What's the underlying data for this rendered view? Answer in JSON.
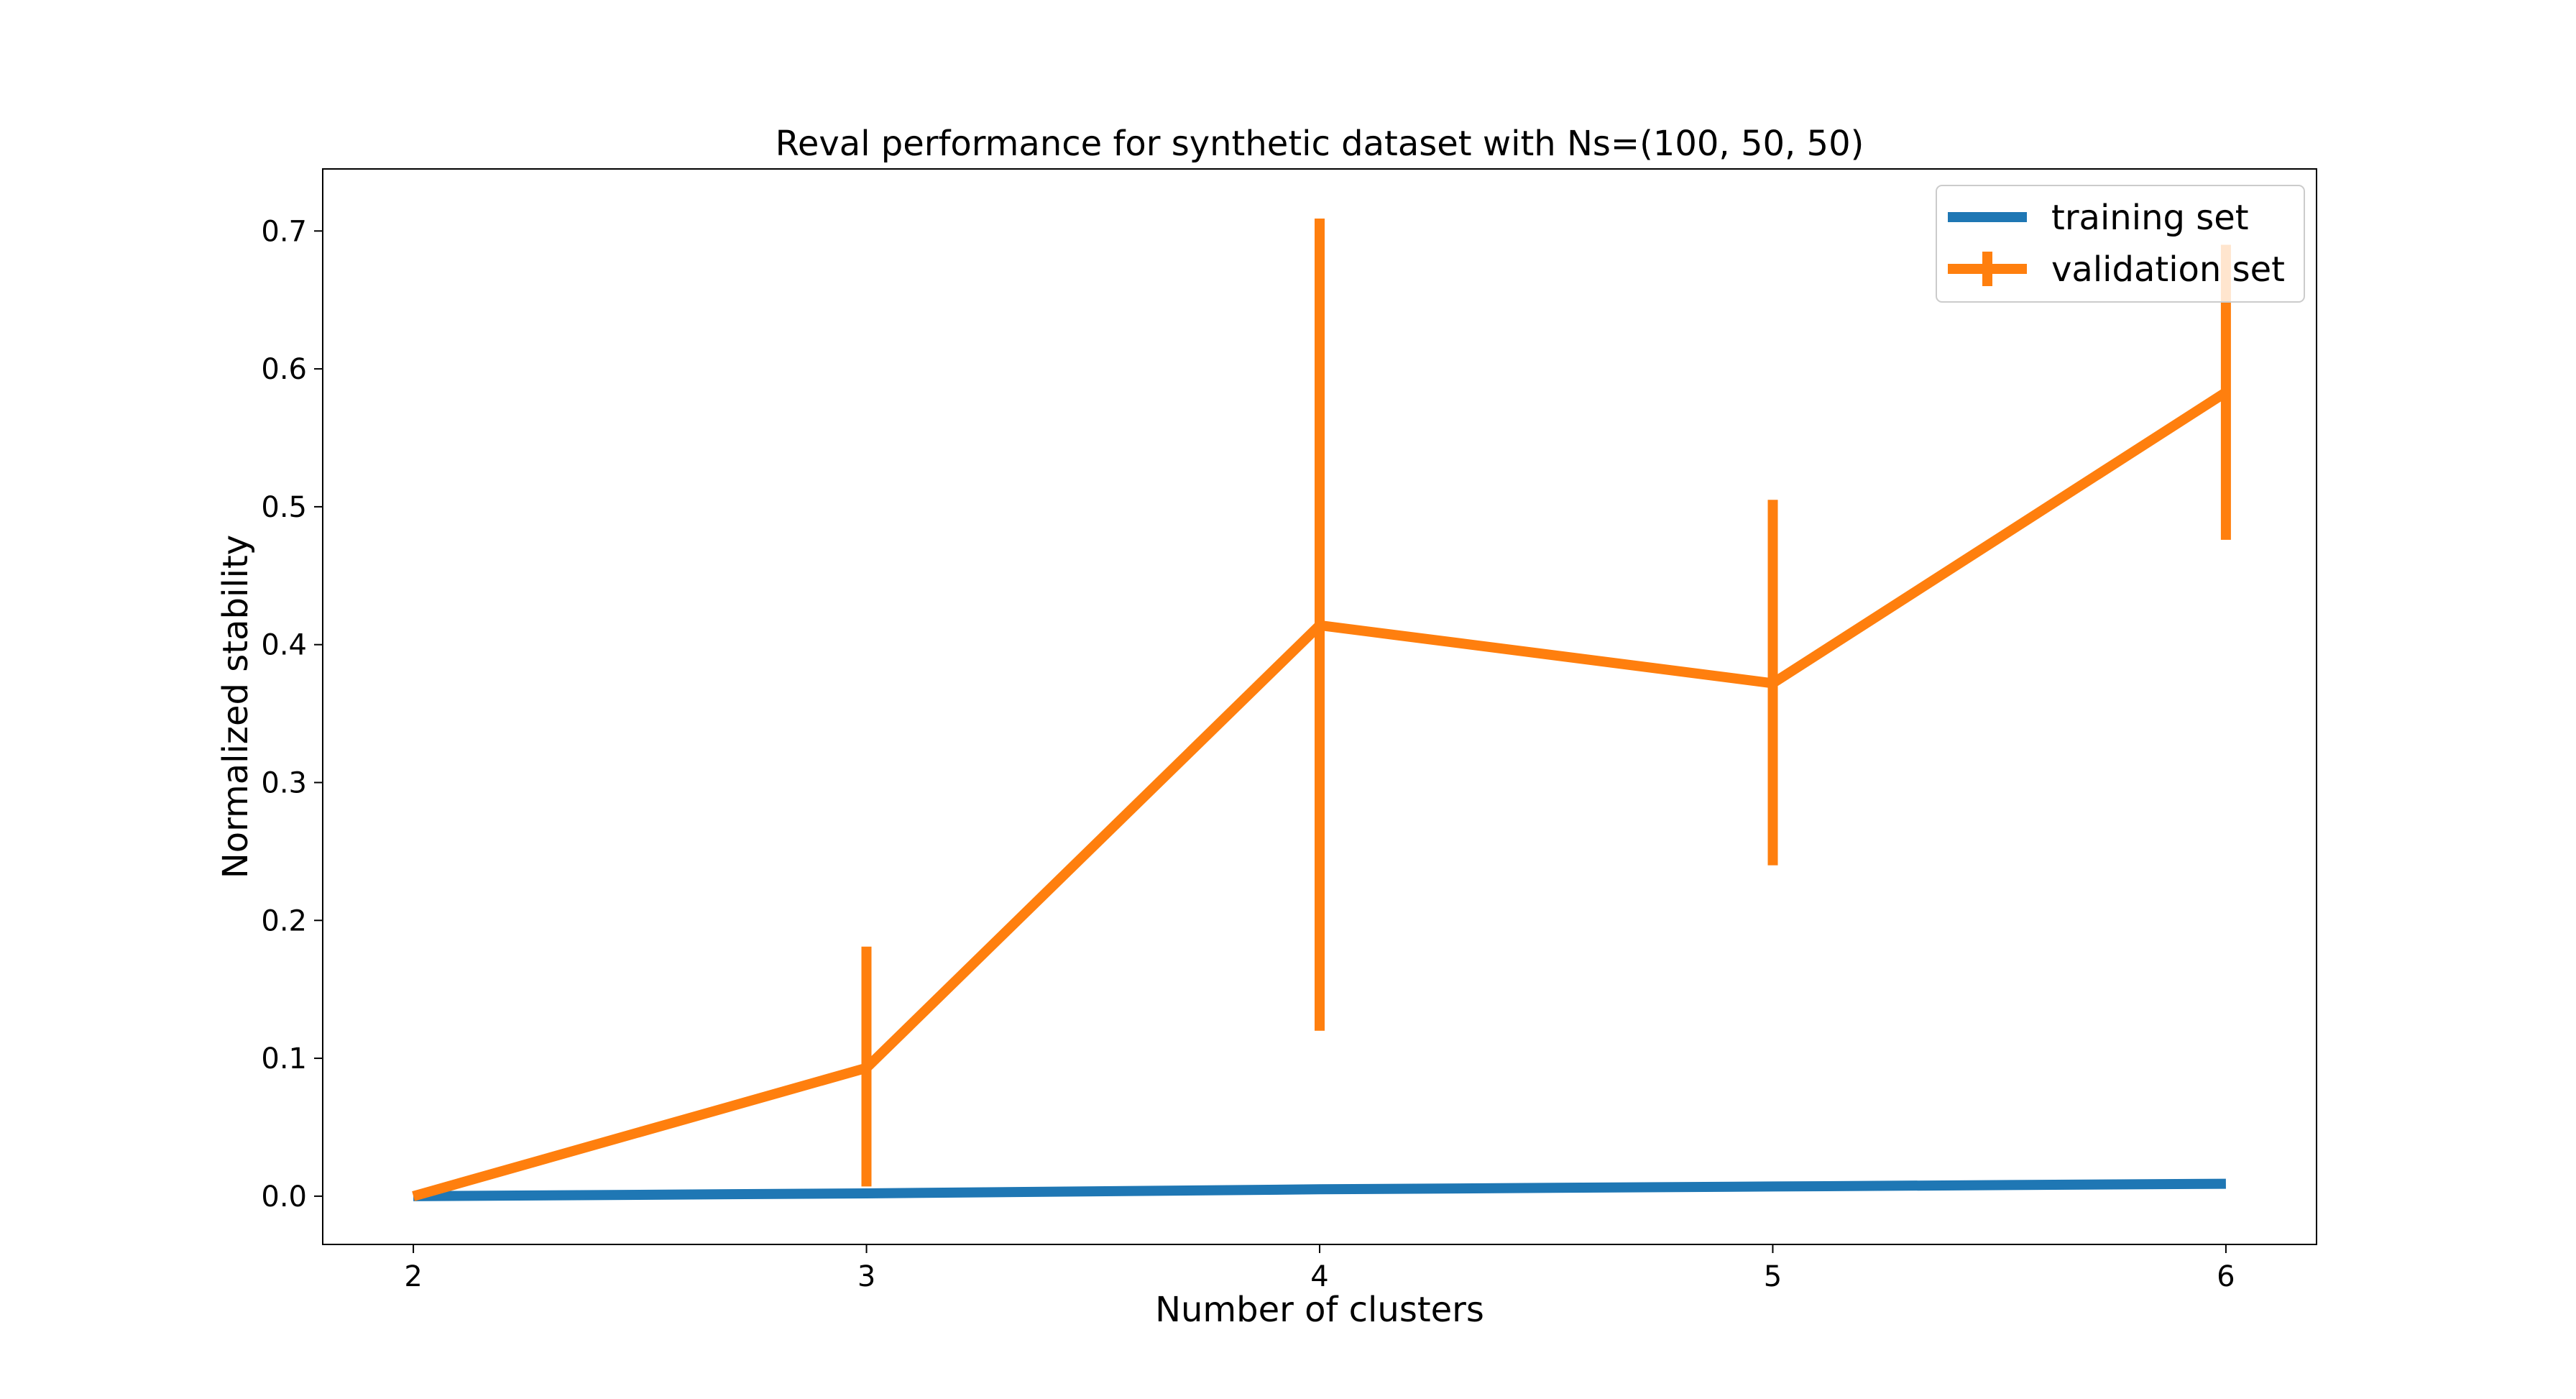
{
  "chart_data": {
    "type": "line",
    "title": "Reval performance for synthetic dataset with Ns=(100, 50, 50)",
    "xlabel": "Number of clusters",
    "ylabel": "Normalized stability",
    "x": [
      2,
      3,
      4,
      5,
      6
    ],
    "xticks": [
      "2",
      "3",
      "4",
      "5",
      "6"
    ],
    "yticks": [
      "0.0",
      "0.1",
      "0.2",
      "0.3",
      "0.4",
      "0.5",
      "0.6",
      "0.7"
    ],
    "xlim": [
      1.8,
      6.2
    ],
    "ylim": [
      -0.035,
      0.745
    ],
    "grid": false,
    "legend_position": "top-right",
    "series": [
      {
        "name": "training set",
        "color": "#1f77b4",
        "values": [
          0.0,
          0.002,
          0.005,
          0.007,
          0.009
        ],
        "error_bars": false
      },
      {
        "name": "validation set",
        "color": "#ff7f0e",
        "values": [
          0.0,
          0.093,
          0.414,
          0.372,
          0.583
        ],
        "error_low": [
          0.0,
          0.007,
          0.12,
          0.24,
          0.476
        ],
        "error_high": [
          0.0,
          0.181,
          0.709,
          0.505,
          0.69
        ],
        "error_bars": true
      }
    ]
  }
}
